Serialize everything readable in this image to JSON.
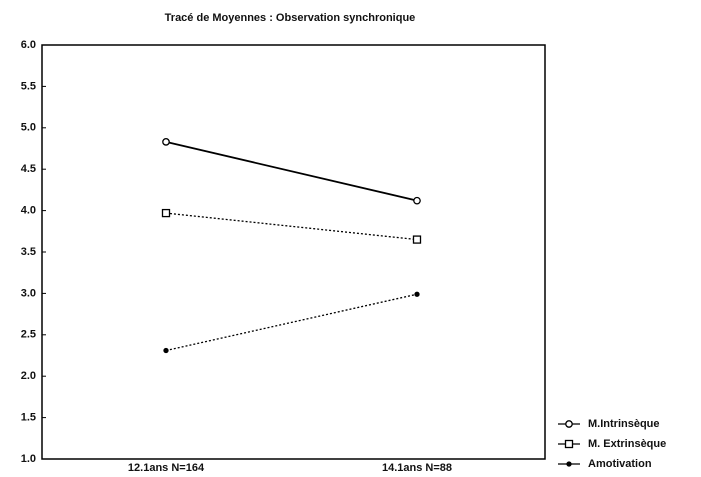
{
  "chart_data": {
    "type": "line",
    "title": "Tracé de Moyennes : Observation synchronique",
    "categories": [
      "12.1ans N=164",
      "14.1ans N=88"
    ],
    "series": [
      {
        "name": "M.Intrinsèque",
        "color": "#000000",
        "linestyle": "solid",
        "marker": "circle",
        "values": [
          4.83,
          4.12
        ]
      },
      {
        "name": "M. Extrinsèque",
        "color": "#000000",
        "linestyle": "dotted",
        "marker": "square",
        "values": [
          3.97,
          3.65
        ]
      },
      {
        "name": "Amotivation",
        "color": "#000000",
        "linestyle": "dotted",
        "marker": "dot",
        "values": [
          2.31,
          2.99
        ]
      }
    ],
    "ylim": [
      1,
      6
    ],
    "yticks": [
      {
        "value": 1,
        "label": "1.0"
      },
      1.5,
      {
        "value": 2,
        "label": "2.0"
      },
      2.5,
      {
        "value": 3,
        "label": "3.0"
      },
      3.5,
      {
        "value": 4,
        "label": "4.0"
      },
      4.5,
      {
        "value": 5,
        "label": "5.0"
      },
      5.5,
      {
        "value": 6,
        "label": "6.0"
      }
    ],
    "legend": "lower right"
  }
}
